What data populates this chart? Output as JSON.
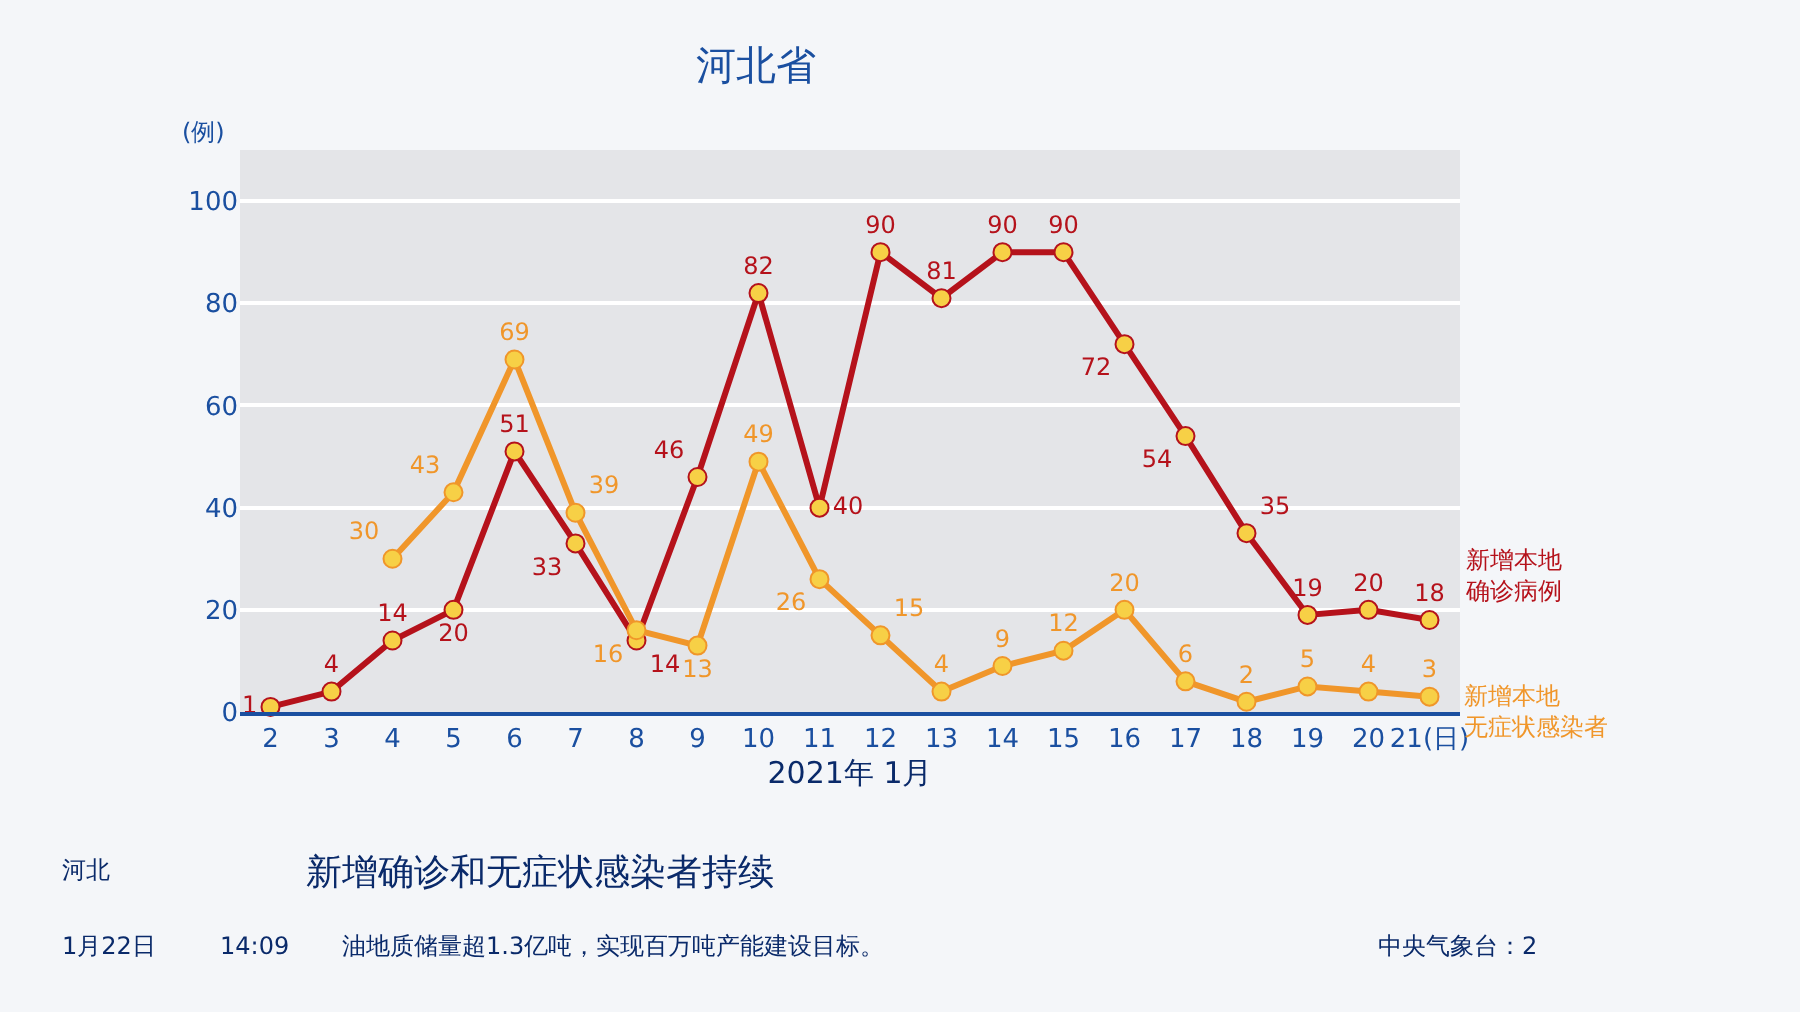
{
  "chart_data": {
    "type": "line",
    "title": "河北省",
    "xlabel": "2021年 1月",
    "ylabel": "(例)",
    "categories": [
      "2",
      "3",
      "4",
      "5",
      "6",
      "7",
      "8",
      "9",
      "10",
      "11",
      "12",
      "13",
      "14",
      "15",
      "16",
      "17",
      "18",
      "19",
      "20",
      "21(日)"
    ],
    "series": [
      {
        "name": "新增本地确诊病例",
        "color": "#b5121b",
        "values": [
          1,
          4,
          14,
          20,
          51,
          33,
          14,
          46,
          82,
          40,
          90,
          81,
          90,
          90,
          72,
          54,
          35,
          19,
          20,
          18
        ]
      },
      {
        "name": "新增本地无症状感染者",
        "color": "#f0962a",
        "values": [
          null,
          null,
          30,
          43,
          69,
          39,
          16,
          13,
          49,
          26,
          15,
          4,
          9,
          12,
          20,
          6,
          2,
          5,
          4,
          3
        ]
      }
    ],
    "ylim": [
      0,
      110
    ],
    "yticks": [
      0,
      20,
      40,
      60,
      80,
      100
    ],
    "grid": "y",
    "legend": false,
    "marker": "circle",
    "line_style": "solid",
    "data_labels": true,
    "annotations": [
      "河北",
      "新增确诊和无症状感染者持续",
      "1月22日",
      "14:09",
      "油地质储量超1.3亿吨，实现百万吨产能建设目标。",
      "中央气象台：2"
    ]
  }
}
